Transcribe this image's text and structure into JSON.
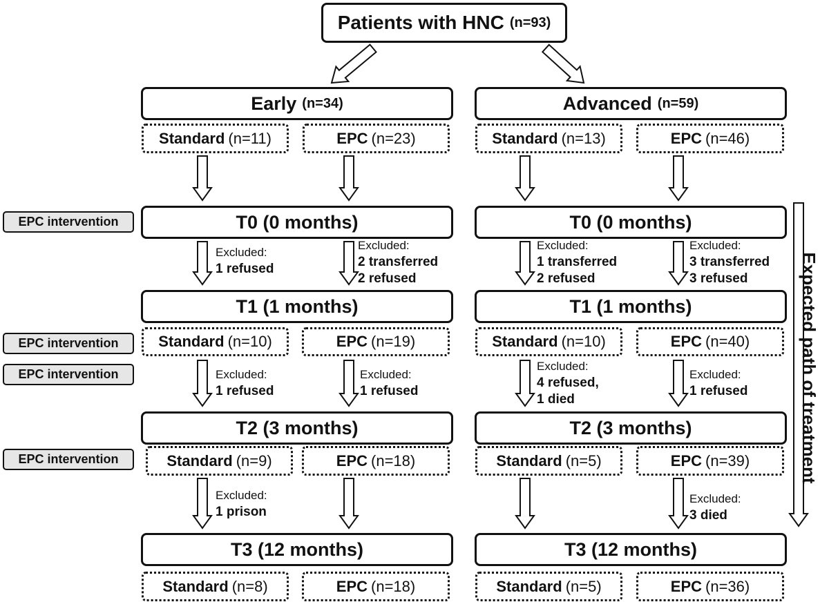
{
  "top": {
    "title": "Patients with HNC",
    "count": "(n=93)"
  },
  "groups": {
    "early": {
      "title": "Early",
      "count": "(n=34)",
      "standard": {
        "label": "Standard",
        "count": "(n=11)"
      },
      "epc": {
        "label": "EPC",
        "count": "(n=23)"
      }
    },
    "advanced": {
      "title": "Advanced",
      "count": "(n=59)",
      "standard": {
        "label": "Standard",
        "count": "(n=13)"
      },
      "epc": {
        "label": "EPC",
        "count": "(n=46)"
      }
    }
  },
  "timepoints": {
    "t0": "T0 (0 months)",
    "t1": "T1 (1 months)",
    "t2": "T2 (3 months)",
    "t3": "T3 (12 months)"
  },
  "counts": {
    "t1": {
      "early_standard": "(n=10)",
      "early_epc": "(n=19)",
      "adv_standard": "(n=10)",
      "adv_epc": "(n=40)"
    },
    "t2": {
      "early_standard": "(n=9)",
      "early_epc": "(n=18)",
      "adv_standard": "(n=5)",
      "adv_epc": "(n=39)"
    },
    "t3": {
      "early_standard": "(n=8)",
      "early_epc": "(n=18)",
      "adv_standard": "(n=5)",
      "adv_epc": "(n=36)"
    }
  },
  "labels": {
    "standard": "Standard",
    "epc": "EPC"
  },
  "intervention_label": "EPC intervention",
  "excluded_heading": "Excluded:",
  "exclusions": {
    "t0_t1": {
      "early_standard": [
        "1 refused"
      ],
      "early_epc": [
        "2 transferred",
        "2 refused"
      ],
      "adv_standard": [
        "1 transferred",
        "2 refused"
      ],
      "adv_epc": [
        "3 transferred",
        "3 refused"
      ]
    },
    "t1_t2": {
      "early_standard": [
        "1 refused"
      ],
      "early_epc": [
        "1 refused"
      ],
      "adv_standard": [
        "4 refused,",
        "1 died"
      ],
      "adv_epc": [
        "1 refused"
      ]
    },
    "t2_t3": {
      "early_standard": [
        "1 prison"
      ],
      "adv_epc": [
        "3 died"
      ]
    }
  },
  "side_label": "Expected path of treatment"
}
